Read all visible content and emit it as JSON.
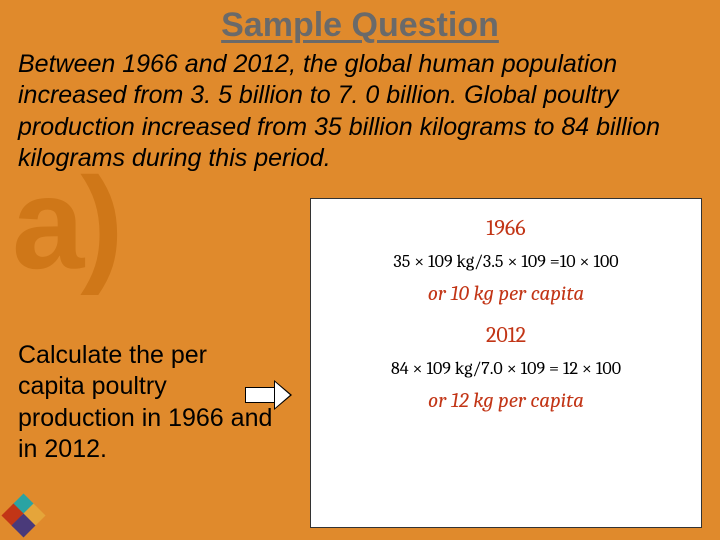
{
  "title": "Sample Question",
  "body_text": "Between 1966 and 2012, the global human population increased from 3. 5 billion to 7. 0 billion. Global poultry production increased from 35 billion kilograms to 84 billion kilograms during this period.",
  "part_label": "a)",
  "subquestion": "Calculate the per capita poultry production in 1966 and in 2012.",
  "solution": {
    "year1": "1966",
    "eq1_lhs": "35 × 109 kg/3.5 × 109",
    "eq1_rhs": "=10 × 100",
    "ans1": "or 10 kg per capita",
    "year2": "2012",
    "eq2_lhs": "84 × 109 kg/7.0 × 109",
    "eq2_rhs": "= 12 × 100",
    "ans2": "or 12 kg per capita"
  },
  "colors": {
    "background": "#e08a2c",
    "title_text": "#6a6a6a",
    "watermark": "#cf7718",
    "solution_accent": "#c23516",
    "solution_bg": "#ffffff"
  }
}
